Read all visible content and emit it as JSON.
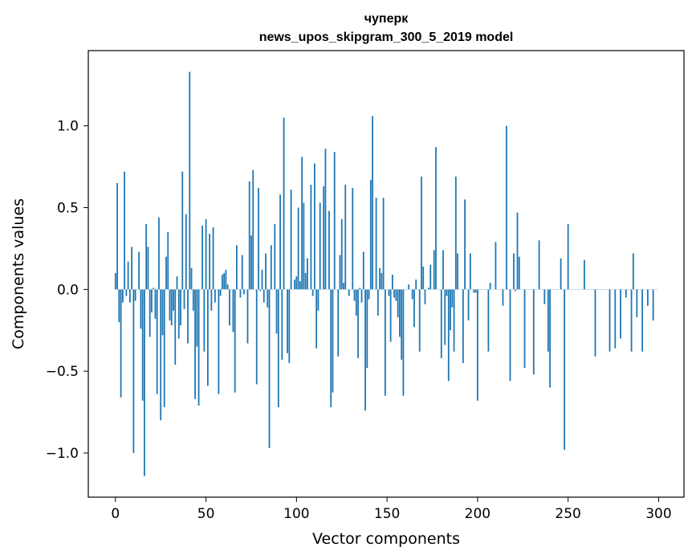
{
  "chart_data": {
    "type": "bar",
    "title": "чуперк",
    "subtitle": "news_upos_skipgram_300_5_2019 model",
    "xlabel": "Vector components",
    "ylabel": "Components values",
    "xlim": [
      -15,
      314
    ],
    "ylim": [
      -1.27,
      1.46
    ],
    "xticks": [
      0,
      50,
      100,
      150,
      200,
      250,
      300
    ],
    "xtick_labels": [
      "0",
      "50",
      "100",
      "150",
      "200",
      "250",
      "300"
    ],
    "yticks": [
      -1.0,
      -0.5,
      0.0,
      0.5,
      1.0
    ],
    "ytick_labels": [
      "−1.0",
      "−0.5",
      "0.0",
      "0.5",
      "1.0"
    ],
    "grid": false,
    "color": "#1f77b4",
    "x_start": 0,
    "values": [
      0.1,
      0.65,
      -0.2,
      -0.66,
      -0.08,
      0.72,
      -0.04,
      0.17,
      -0.08,
      0.26,
      -1.0,
      -0.07,
      0.0,
      0.23,
      -0.24,
      -0.68,
      -1.14,
      0.4,
      0.26,
      -0.29,
      -0.14,
      0.01,
      -0.18,
      -0.64,
      0.44,
      -0.8,
      -0.28,
      -0.72,
      0.2,
      0.35,
      -0.19,
      -0.22,
      -0.13,
      -0.46,
      0.08,
      -0.3,
      -0.22,
      0.72,
      -0.12,
      0.46,
      -0.33,
      1.33,
      0.13,
      -0.13,
      -0.67,
      -0.35,
      -0.71,
      0.0,
      0.39,
      -0.38,
      0.43,
      -0.59,
      0.34,
      -0.13,
      0.38,
      -0.08,
      0.0,
      -0.64,
      -0.04,
      0.09,
      0.1,
      0.12,
      0.03,
      -0.22,
      0.0,
      -0.26,
      -0.63,
      0.27,
      0.0,
      -0.05,
      0.21,
      -0.03,
      0.0,
      -0.33,
      0.66,
      0.33,
      0.73,
      0.0,
      -0.58,
      0.62,
      -0.01,
      0.12,
      -0.08,
      0.22,
      -0.11,
      -0.97,
      0.27,
      0.0,
      0.4,
      -0.27,
      -0.72,
      0.58,
      -0.43,
      1.05,
      0.0,
      -0.39,
      -0.45,
      0.61,
      0.0,
      0.06,
      0.08,
      0.5,
      0.05,
      0.81,
      0.53,
      0.1,
      0.19,
      0.0,
      0.64,
      -0.04,
      0.77,
      -0.36,
      -0.13,
      0.53,
      0.0,
      0.63,
      0.86,
      0.0,
      0.48,
      -0.72,
      -0.63,
      0.84,
      0.0,
      -0.41,
      0.21,
      0.43,
      0.04,
      0.64,
      0.0,
      -0.04,
      0.0,
      0.62,
      -0.07,
      -0.16,
      -0.42,
      0.01,
      -0.08,
      0.23,
      -0.74,
      -0.48,
      -0.06,
      0.67,
      1.06,
      0.0,
      0.56,
      -0.16,
      0.13,
      0.1,
      0.56,
      -0.65,
      0.0,
      -0.04,
      -0.32,
      0.09,
      -0.05,
      -0.07,
      -0.17,
      -0.29,
      -0.43,
      -0.65,
      0.0,
      0.0,
      0.03,
      0.0,
      -0.06,
      -0.23,
      0.06,
      0.0,
      -0.38,
      0.69,
      0.14,
      -0.09,
      0.0,
      0.01,
      0.15,
      0.0,
      0.24,
      0.87,
      0.0,
      0.0,
      -0.42,
      0.24,
      -0.34,
      -0.04,
      -0.56,
      -0.25,
      -0.11,
      -0.38,
      0.69,
      0.22,
      0.0,
      0.0,
      -0.45,
      0.55,
      0.0,
      -0.19,
      0.22,
      0.0,
      -0.02,
      -0.02,
      -0.68,
      0.0,
      0.0,
      0.0,
      0.0,
      0.0,
      -0.38,
      0.04,
      0.0,
      0.0,
      0.29,
      0.0,
      0.0,
      0.0,
      -0.1,
      0.0,
      1.0,
      0.0,
      -0.56,
      0.0,
      0.22,
      -0.01,
      0.47,
      0.2,
      0.0,
      0.0,
      -0.48,
      0.0,
      0.0,
      0.0,
      0.0,
      -0.52,
      0.0,
      0.0,
      0.3,
      0.0,
      0.0,
      -0.09,
      0.0,
      -0.38,
      -0.6,
      0.0,
      0.0,
      0.0,
      0.0,
      0.0,
      0.19,
      0.0,
      -0.98,
      0.0,
      0.4,
      0.0,
      0.0,
      0.0,
      0.0,
      0.0,
      0.0,
      0.0,
      0.0,
      0.18,
      0.0,
      0.0,
      0.0,
      0.0,
      0.0,
      -0.41,
      0.0,
      0.0,
      0.0,
      0.0,
      0.0,
      0.0,
      0.0,
      -0.38,
      0.0,
      0.0,
      -0.36,
      0.0,
      0.0,
      -0.3,
      0.0,
      0.0,
      -0.05,
      0.0,
      0.0,
      -0.38,
      0.22,
      0.0,
      -0.17,
      0.0,
      0.0,
      -0.38,
      0.0,
      0.0,
      -0.1,
      0.0,
      0.0,
      -0.19,
      0.0,
      0.0
    ]
  }
}
